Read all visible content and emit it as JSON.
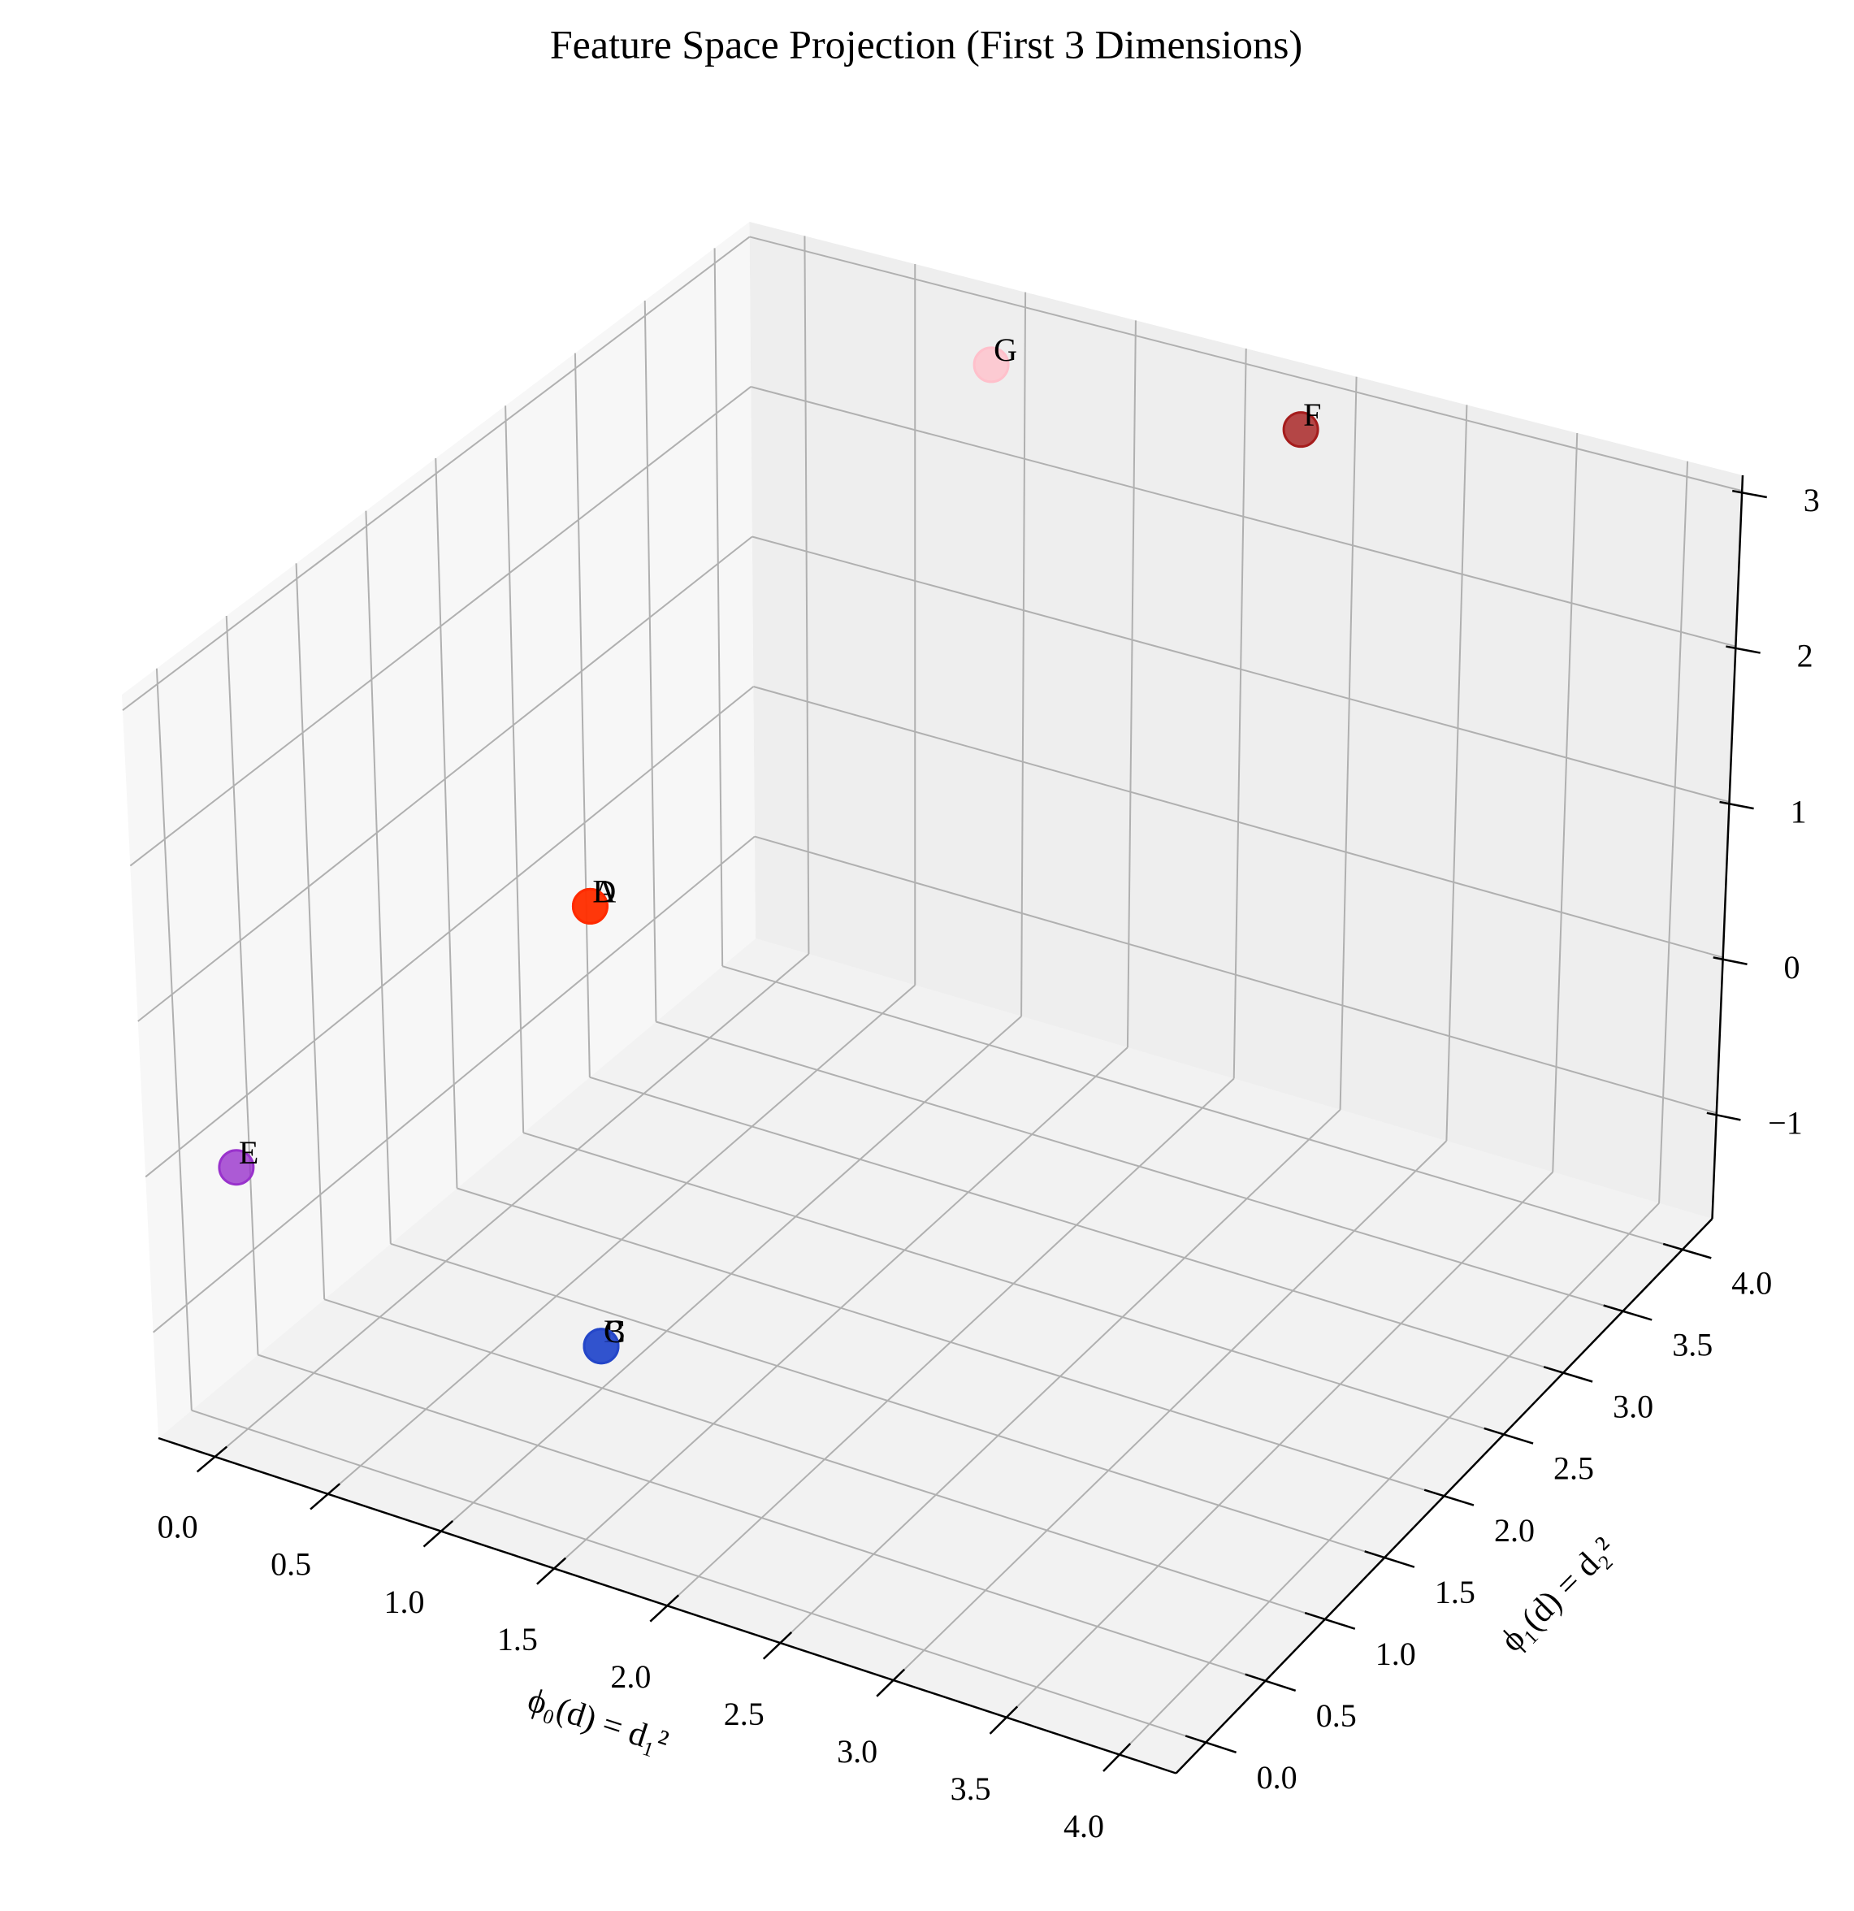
{
  "chart_data": {
    "type": "scatter3d",
    "title": "Feature Space Projection (First 3 Dimensions)",
    "xlabel": "ϕ₀(d) = d₁²",
    "ylabel": "ϕ₁(d) = d₂²",
    "labels": [
      "A",
      "B",
      "C",
      "D",
      "E",
      "F",
      "G"
    ],
    "x": [
      1,
      1,
      1,
      1,
      0,
      2.4,
      1
    ],
    "y": [
      1,
      1,
      1,
      1,
      0,
      4,
      4
    ],
    "z": [
      1.41,
      -1.41,
      -1.41,
      1.41,
      0,
      2.9,
      2.8
    ],
    "colors": [
      "#ff4500",
      "#4169e1",
      "#2446c8",
      "#ff2a00",
      "#9932cc",
      "#a51c1c",
      "#ffc0cb"
    ],
    "xlim": [
      -0.25,
      4.25
    ],
    "ylim": [
      -0.25,
      4.25
    ],
    "zlim": [
      -1.68,
      3.1
    ],
    "xticks": [
      {
        "value": 0,
        "label": "0.0"
      },
      0.5,
      {
        "value": 1,
        "label": "1.0"
      },
      1.5,
      {
        "value": 2,
        "label": "2.0"
      },
      2.5,
      {
        "value": 3,
        "label": "3.0"
      },
      3.5,
      {
        "value": 4,
        "label": "4.0"
      }
    ],
    "yticks": [
      {
        "value": 0,
        "label": "0.0"
      },
      0.5,
      {
        "value": 1,
        "label": "1.0"
      },
      1.5,
      {
        "value": 2,
        "label": "2.0"
      },
      2.5,
      {
        "value": 3,
        "label": "3.0"
      },
      3.5,
      {
        "value": 4,
        "label": "4.0"
      }
    ],
    "zticks": [
      {
        "value": -1,
        "label": "−1"
      },
      0,
      1,
      2,
      3
    ],
    "grid": true
  }
}
